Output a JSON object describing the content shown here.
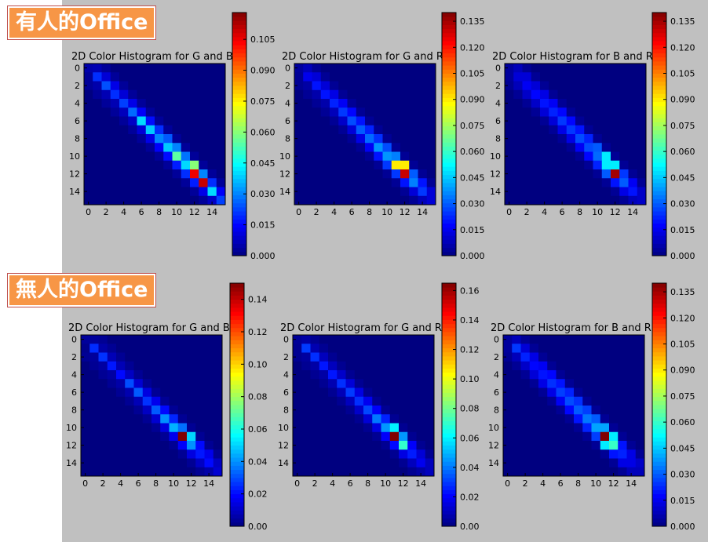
{
  "sections": [
    {
      "label": "有人的Office"
    },
    {
      "label": "無人的Office"
    }
  ],
  "colors": {
    "slide_background": "#c0c0c0",
    "label_fill": "#f79646",
    "label_text": "#ffffff"
  },
  "chart_data": [
    {
      "type": "heatmap",
      "colormap": "jet",
      "section": "有人的Office",
      "title": "2D Color Histogram for G and B",
      "xlim": [
        0,
        16
      ],
      "ylim": [
        16,
        0
      ],
      "xticks": [
        "0",
        "2",
        "4",
        "6",
        "8",
        "10",
        "12",
        "14"
      ],
      "yticks": [
        "0",
        "2",
        "4",
        "6",
        "8",
        "10",
        "12",
        "14"
      ],
      "colorbar": {
        "min": 0,
        "max": 0.118,
        "ticks": [
          "0.000",
          "0.015",
          "0.030",
          "0.045",
          "0.060",
          "0.075",
          "0.090",
          "0.105"
        ]
      },
      "diagonal": [
        0.005,
        0.02,
        0.024,
        0.02,
        0.022,
        0.027,
        0.04,
        0.038,
        0.03,
        0.038,
        0.055,
        0.04,
        0.105,
        0.11,
        0.04,
        0.022
      ],
      "upper": [
        0.006,
        0.01,
        0.012,
        0.01,
        0.012,
        0.014,
        0.016,
        0.02,
        0.025,
        0.03,
        0.028,
        0.06,
        0.03,
        0.02,
        0.014
      ],
      "lower": [
        0.003,
        0.005,
        0.006,
        0.006,
        0.007,
        0.008,
        0.01,
        0.012,
        0.014,
        0.016,
        0.018,
        0.02,
        0.018,
        0.012,
        0.008
      ]
    },
    {
      "type": "heatmap",
      "colormap": "jet",
      "section": "有人的Office",
      "title": "2D Color Histogram for G and R",
      "xlim": [
        0,
        16
      ],
      "ylim": [
        16,
        0
      ],
      "xticks": [
        "0",
        "2",
        "4",
        "6",
        "8",
        "10",
        "12",
        "14"
      ],
      "yticks": [
        "0",
        "2",
        "4",
        "6",
        "8",
        "10",
        "12",
        "14"
      ],
      "colorbar": {
        "min": 0,
        "max": 0.14,
        "ticks": [
          "0.000",
          "0.015",
          "0.030",
          "0.045",
          "0.060",
          "0.075",
          "0.090",
          "0.105",
          "0.120",
          "0.135"
        ]
      },
      "diagonal": [
        0.004,
        0.015,
        0.02,
        0.02,
        0.022,
        0.025,
        0.028,
        0.03,
        0.032,
        0.038,
        0.038,
        0.09,
        0.13,
        0.035,
        0.025,
        0.012
      ],
      "upper": [
        0.008,
        0.012,
        0.012,
        0.014,
        0.016,
        0.018,
        0.02,
        0.022,
        0.024,
        0.028,
        0.035,
        0.09,
        0.03,
        0.02,
        0.012
      ],
      "lower": [
        0.003,
        0.005,
        0.006,
        0.006,
        0.008,
        0.01,
        0.012,
        0.014,
        0.016,
        0.02,
        0.025,
        0.025,
        0.02,
        0.012,
        0.008
      ]
    },
    {
      "type": "heatmap",
      "colormap": "jet",
      "section": "有人的Office",
      "title": "2D Color Histogram for B and R",
      "xlim": [
        0,
        16
      ],
      "ylim": [
        16,
        0
      ],
      "xticks": [
        "0",
        "2",
        "4",
        "6",
        "8",
        "10",
        "12",
        "14"
      ],
      "yticks": [
        "0",
        "2",
        "4",
        "6",
        "8",
        "10",
        "12",
        "14"
      ],
      "colorbar": {
        "min": 0,
        "max": 0.14,
        "ticks": [
          "0.000",
          "0.015",
          "0.030",
          "0.045",
          "0.060",
          "0.075",
          "0.090",
          "0.105",
          "0.120",
          "0.135"
        ]
      },
      "diagonal": [
        0.004,
        0.012,
        0.016,
        0.018,
        0.02,
        0.022,
        0.025,
        0.025,
        0.028,
        0.028,
        0.032,
        0.05,
        0.135,
        0.03,
        0.02,
        0.01
      ],
      "upper": [
        0.008,
        0.012,
        0.012,
        0.014,
        0.016,
        0.018,
        0.018,
        0.02,
        0.022,
        0.03,
        0.05,
        0.05,
        0.025,
        0.016,
        0.01
      ],
      "lower": [
        0.004,
        0.008,
        0.01,
        0.01,
        0.012,
        0.012,
        0.014,
        0.014,
        0.016,
        0.018,
        0.022,
        0.03,
        0.02,
        0.014,
        0.008
      ]
    },
    {
      "type": "heatmap",
      "colormap": "jet",
      "section": "無人的Office",
      "title": "2D Color Histogram for G and B",
      "xlim": [
        0,
        16
      ],
      "ylim": [
        16,
        0
      ],
      "xticks": [
        "0",
        "2",
        "4",
        "6",
        "8",
        "10",
        "12",
        "14"
      ],
      "yticks": [
        "0",
        "2",
        "4",
        "6",
        "8",
        "10",
        "12",
        "14"
      ],
      "colorbar": {
        "min": 0,
        "max": 0.15,
        "ticks": [
          "0.00",
          "0.02",
          "0.04",
          "0.06",
          "0.08",
          "0.10",
          "0.12",
          "0.14"
        ]
      },
      "diagonal": [
        0.004,
        0.025,
        0.026,
        0.022,
        0.02,
        0.03,
        0.032,
        0.026,
        0.032,
        0.04,
        0.045,
        0.15,
        0.04,
        0.022,
        0.02,
        0.012
      ],
      "upper": [
        0.004,
        0.006,
        0.008,
        0.008,
        0.01,
        0.012,
        0.014,
        0.016,
        0.02,
        0.024,
        0.035,
        0.05,
        0.02,
        0.016,
        0.01
      ],
      "lower": [
        0.002,
        0.004,
        0.005,
        0.005,
        0.006,
        0.007,
        0.008,
        0.01,
        0.012,
        0.014,
        0.016,
        0.018,
        0.014,
        0.01,
        0.006
      ]
    },
    {
      "type": "heatmap",
      "colormap": "jet",
      "section": "無人的Office",
      "title": "2D Color Histogram for G and R",
      "xlim": [
        0,
        16
      ],
      "ylim": [
        16,
        0
      ],
      "xticks": [
        "0",
        "2",
        "4",
        "6",
        "8",
        "10",
        "12",
        "14"
      ],
      "yticks": [
        "0",
        "2",
        "4",
        "6",
        "8",
        "10",
        "12",
        "14"
      ],
      "colorbar": {
        "min": 0,
        "max": 0.165,
        "ticks": [
          "0.00",
          "0.02",
          "0.04",
          "0.06",
          "0.08",
          "0.10",
          "0.12",
          "0.14",
          "0.16"
        ]
      },
      "diagonal": [
        0.004,
        0.03,
        0.028,
        0.024,
        0.024,
        0.028,
        0.03,
        0.028,
        0.032,
        0.04,
        0.045,
        0.165,
        0.07,
        0.025,
        0.018,
        0.01
      ],
      "upper": [
        0.006,
        0.008,
        0.01,
        0.01,
        0.012,
        0.014,
        0.016,
        0.018,
        0.02,
        0.026,
        0.06,
        0.045,
        0.02,
        0.014,
        0.01
      ],
      "lower": [
        0.003,
        0.005,
        0.006,
        0.006,
        0.008,
        0.009,
        0.01,
        0.012,
        0.014,
        0.016,
        0.02,
        0.022,
        0.016,
        0.01,
        0.006
      ]
    },
    {
      "type": "heatmap",
      "colormap": "jet",
      "section": "無人的Office",
      "title": "2D Color Histogram for B and R",
      "xlim": [
        0,
        16
      ],
      "ylim": [
        16,
        0
      ],
      "xticks": [
        "0",
        "2",
        "4",
        "6",
        "8",
        "10",
        "12",
        "14"
      ],
      "yticks": [
        "0",
        "2",
        "4",
        "6",
        "8",
        "10",
        "12",
        "14"
      ],
      "colorbar": {
        "min": 0,
        "max": 0.14,
        "ticks": [
          "0.000",
          "0.015",
          "0.030",
          "0.045",
          "0.060",
          "0.075",
          "0.090",
          "0.105",
          "0.120",
          "0.135"
        ]
      },
      "diagonal": [
        0.004,
        0.025,
        0.022,
        0.018,
        0.02,
        0.024,
        0.026,
        0.028,
        0.03,
        0.034,
        0.04,
        0.14,
        0.06,
        0.022,
        0.014,
        0.008
      ],
      "upper": [
        0.008,
        0.012,
        0.014,
        0.016,
        0.018,
        0.02,
        0.022,
        0.024,
        0.026,
        0.03,
        0.04,
        0.05,
        0.02,
        0.014,
        0.01
      ],
      "lower": [
        0.004,
        0.008,
        0.01,
        0.012,
        0.014,
        0.014,
        0.016,
        0.018,
        0.02,
        0.022,
        0.026,
        0.05,
        0.02,
        0.014,
        0.008
      ]
    }
  ]
}
